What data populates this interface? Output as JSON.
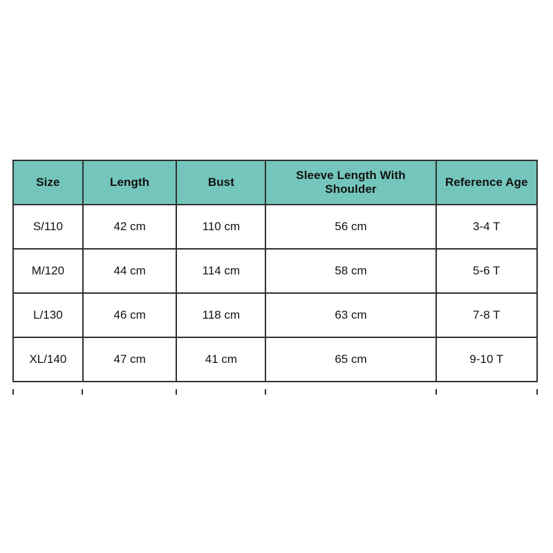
{
  "page": {
    "background_color": "#ffffff"
  },
  "chart_data": {
    "type": "table",
    "columns": [
      "Size",
      "Length",
      "Bust",
      "Sleeve Length With Shoulder",
      "Reference Age"
    ],
    "rows": [
      [
        "S/110",
        "42 cm",
        "110 cm",
        "56 cm",
        "3-4 T"
      ],
      [
        "M/120",
        "44 cm",
        "114 cm",
        "58 cm",
        "5-6 T"
      ],
      [
        "L/130",
        "46 cm",
        "118 cm",
        "63 cm",
        "7-8 T"
      ],
      [
        "XL/140",
        "47 cm",
        "41 cm",
        "65 cm",
        "9-10 T"
      ]
    ],
    "layout": {
      "header_background": "#74c6bc",
      "border_color": "#2f2f2f",
      "text_color": "#111111",
      "grid": true,
      "legend": "none"
    }
  }
}
